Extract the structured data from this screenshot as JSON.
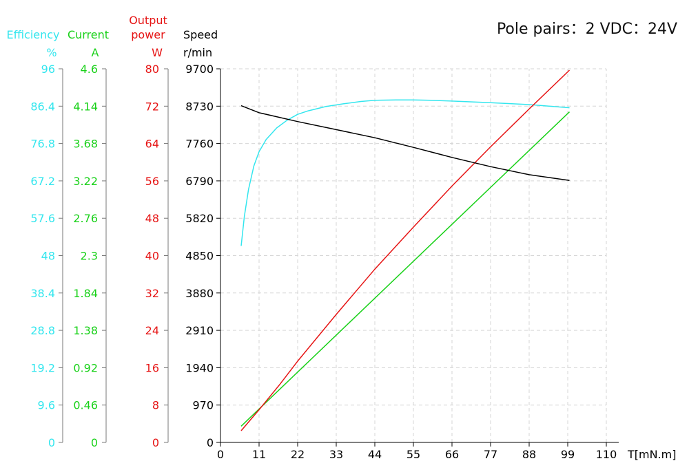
{
  "info": {
    "text": "Pole pairs：2   VDC：24V"
  },
  "colors": {
    "efficiency": "#33e6ee",
    "current": "#19d119",
    "power": "#e61414",
    "speed": "#000000",
    "grid": "#d6d6d6"
  },
  "chart_data": {
    "type": "line",
    "title": "",
    "xlabel": "T[mN.m]",
    "xlim": [
      0,
      110
    ],
    "x_ticks": [
      "0",
      "11",
      "22",
      "33",
      "44",
      "55",
      "66",
      "77",
      "88",
      "99",
      "110"
    ],
    "grid": true,
    "axes": {
      "efficiency": {
        "label": "Efficiency",
        "unit": "%",
        "ticks": [
          "0",
          "9.6",
          "19.2",
          "28.8",
          "38.4",
          "48",
          "57.6",
          "67.2",
          "76.8",
          "86.4",
          "96"
        ],
        "min": 0,
        "max": 96
      },
      "current": {
        "label": "Current",
        "unit": "A",
        "ticks": [
          "0",
          "0.46",
          "0.92",
          "1.38",
          "1.84",
          "2.3",
          "2.76",
          "3.22",
          "3.68",
          "4.14",
          "4.6"
        ],
        "min": 0,
        "max": 4.6
      },
      "power": {
        "label": "Output\npower",
        "unit": "W",
        "ticks": [
          "0",
          "8",
          "16",
          "24",
          "32",
          "40",
          "48",
          "56",
          "64",
          "72",
          "80"
        ],
        "min": 0,
        "max": 80
      },
      "speed": {
        "label": "Speed",
        "unit": "r/min",
        "ticks": [
          "0",
          "970",
          "1940",
          "2910",
          "3880",
          "4850",
          "5820",
          "6790",
          "7760",
          "8730",
          "9700"
        ],
        "min": 0,
        "max": 9700
      }
    },
    "series": [
      {
        "key": "efficiency",
        "axis": "efficiency",
        "points": [
          [
            5.9,
            50.5
          ],
          [
            6.8,
            58
          ],
          [
            8,
            65
          ],
          [
            9.5,
            71
          ],
          [
            11,
            74.7
          ],
          [
            13,
            77.8
          ],
          [
            16,
            80.8
          ],
          [
            19,
            82.8
          ],
          [
            22,
            84.3
          ],
          [
            25,
            85.2
          ],
          [
            30,
            86.3
          ],
          [
            35,
            87
          ],
          [
            40,
            87.6
          ],
          [
            44,
            87.9
          ],
          [
            50,
            88
          ],
          [
            55,
            88
          ],
          [
            60,
            87.9
          ],
          [
            66,
            87.7
          ],
          [
            77,
            87.3
          ],
          [
            88,
            86.8
          ],
          [
            99.5,
            86
          ]
        ]
      },
      {
        "key": "current",
        "axis": "current",
        "points": [
          [
            5.9,
            0.2
          ],
          [
            99.5,
            4.07
          ]
        ]
      },
      {
        "key": "power",
        "axis": "power",
        "points": [
          [
            5.9,
            2.5
          ],
          [
            11,
            7
          ],
          [
            17,
            12.5
          ],
          [
            22,
            17.4
          ],
          [
            33,
            27.4
          ],
          [
            44,
            37.1
          ],
          [
            55,
            46.1
          ],
          [
            66,
            54.9
          ],
          [
            77,
            63.3
          ],
          [
            88,
            71.4
          ],
          [
            99.5,
            79.7
          ]
        ]
      },
      {
        "key": "speed",
        "axis": "speed",
        "points": [
          [
            5.9,
            8742
          ],
          [
            11,
            8560
          ],
          [
            22,
            8330
          ],
          [
            33,
            8120
          ],
          [
            44,
            7910
          ],
          [
            55,
            7660
          ],
          [
            66,
            7400
          ],
          [
            77,
            7160
          ],
          [
            88,
            6950
          ],
          [
            99.5,
            6800
          ]
        ]
      }
    ]
  }
}
